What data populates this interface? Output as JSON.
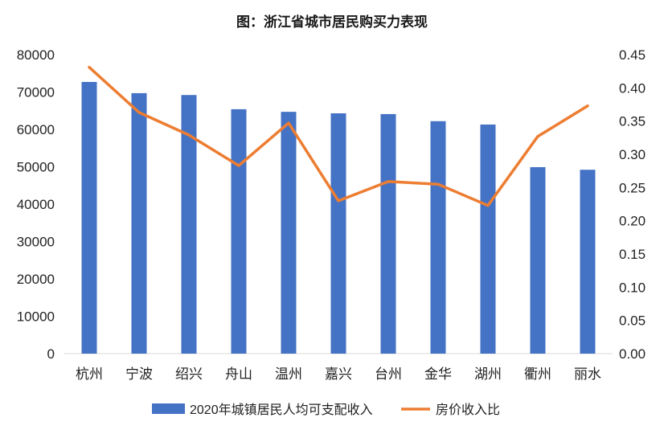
{
  "chart_data": {
    "type": "bar",
    "title": "图：浙江省城市居民购买力表现",
    "categories": [
      "杭州",
      "宁波",
      "绍兴",
      "舟山",
      "温州",
      "嘉兴",
      "台州",
      "金华",
      "湖州",
      "衢州",
      "丽水"
    ],
    "series": [
      {
        "name": "2020年城镇居民人均可支配收入",
        "type": "bar",
        "axis": "left",
        "color": "#4472C4",
        "values": [
          72700,
          69700,
          69200,
          65400,
          64700,
          64300,
          64100,
          62200,
          61300,
          49900,
          49200
        ]
      },
      {
        "name": "房价收入比",
        "type": "line",
        "axis": "right",
        "color": "#ED7D31",
        "values": [
          0.431,
          0.363,
          0.329,
          0.283,
          0.347,
          0.23,
          0.259,
          0.255,
          0.223,
          0.327,
          0.373
        ]
      }
    ],
    "y_left": {
      "min": 0,
      "max": 80000,
      "ticks": [
        "0",
        "10000",
        "20000",
        "30000",
        "40000",
        "50000",
        "60000",
        "70000",
        "80000"
      ]
    },
    "y_right": {
      "min": 0,
      "max": 0.45,
      "ticks": [
        "0.00",
        "0.05",
        "0.10",
        "0.15",
        "0.20",
        "0.25",
        "0.30",
        "0.35",
        "0.40",
        "0.45"
      ]
    },
    "grid": false,
    "legend": "bottom"
  }
}
